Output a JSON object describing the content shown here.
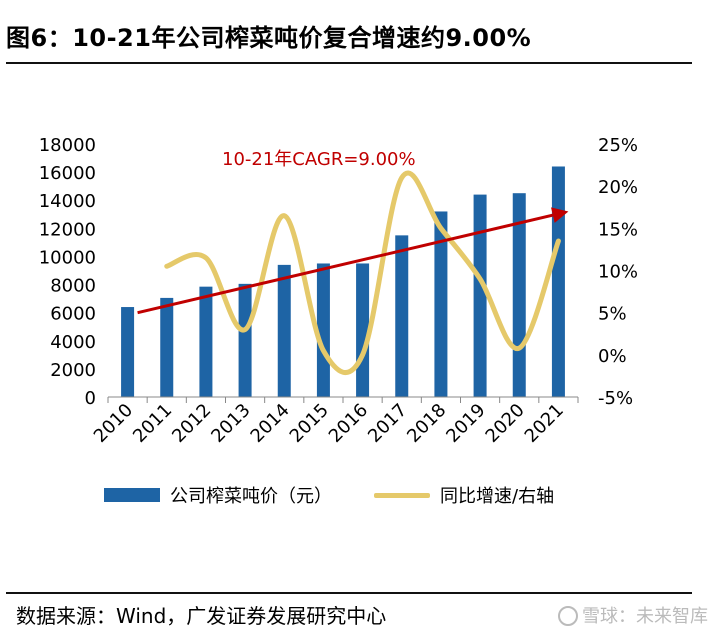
{
  "title": "图6：10-21年公司榨菜吨价复合增速约9.00%",
  "source": "数据来源：Wind，广发证券发展研究中心",
  "watermark": "雪球：未来智库",
  "chart_data": {
    "type": "bar",
    "categories": [
      "2010",
      "2011",
      "2012",
      "2013",
      "2014",
      "2015",
      "2016",
      "2017",
      "2018",
      "2019",
      "2020",
      "2021"
    ],
    "series": [
      {
        "name": "公司榨菜吨价（元）",
        "type": "bar",
        "axis": "left",
        "color": "#1e64a5",
        "values": [
          6400,
          7050,
          7850,
          8050,
          9400,
          9500,
          9500,
          11500,
          13200,
          14400,
          14500,
          16400
        ]
      },
      {
        "name": "同比增速/右轴",
        "type": "line",
        "axis": "right",
        "color": "#e5c96a",
        "values": [
          null,
          10.5,
          11.5,
          3.0,
          16.5,
          0.5,
          0.0,
          21.0,
          15.0,
          9.0,
          0.8,
          13.5
        ]
      }
    ],
    "y_left": {
      "min": 0,
      "max": 18000,
      "ticks": [
        0,
        2000,
        4000,
        6000,
        8000,
        10000,
        12000,
        14000,
        16000,
        18000
      ]
    },
    "y_right": {
      "min": -5,
      "max": 25,
      "ticks": [
        "-5%",
        "0%",
        "5%",
        "10%",
        "15%",
        "20%",
        "25%"
      ]
    },
    "annotation": {
      "text": "10-21年CAGR=9.00%",
      "color": "#c00000",
      "arrow_from": {
        "x": "2010",
        "y": 6000
      },
      "arrow_to": {
        "x": "2021",
        "y": 13200
      }
    },
    "legend_position": "bottom"
  }
}
